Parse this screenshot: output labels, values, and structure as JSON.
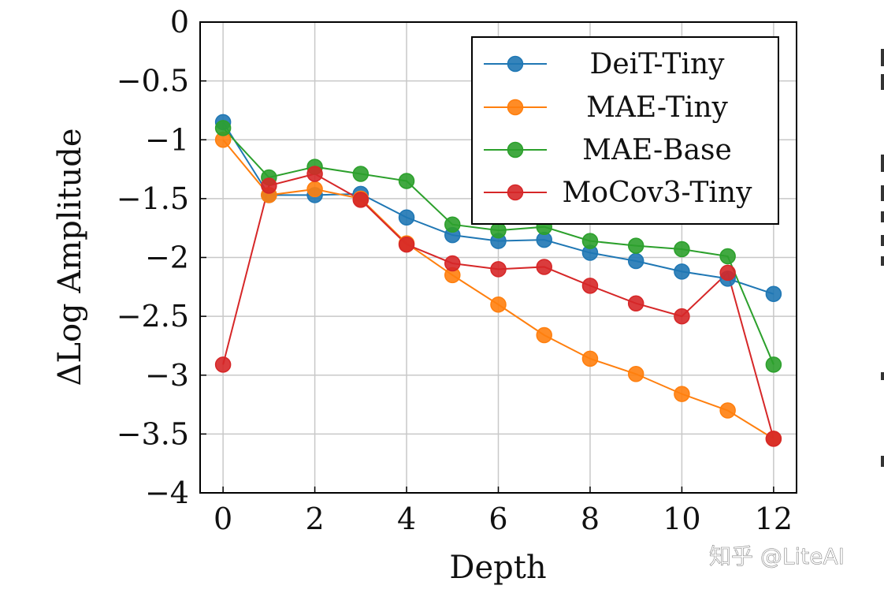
{
  "chart_data": {
    "type": "line",
    "title": "",
    "xlabel": "Depth",
    "ylabel": "ΔLog Amplitude",
    "xlim": [
      -0.5,
      12.5
    ],
    "ylim": [
      -4,
      0
    ],
    "xticks": [
      0,
      2,
      4,
      6,
      8,
      10,
      12
    ],
    "xtick_labels": [
      "0",
      "2",
      "4",
      "6",
      "8",
      "10",
      "12"
    ],
    "yticks": [
      0,
      -0.5,
      -1,
      -1.5,
      -2,
      -2.5,
      -3,
      -3.5,
      -4
    ],
    "ytick_labels": [
      "0",
      "−0.5",
      "−1",
      "−1.5",
      "−2",
      "−2.5",
      "−3",
      "−3.5",
      "−4"
    ],
    "grid": true,
    "legend_position": "top-right",
    "x": [
      0,
      1,
      2,
      3,
      4,
      5,
      6,
      7,
      8,
      9,
      10,
      11,
      12
    ],
    "series": [
      {
        "name": "DeiT-Tiny",
        "color": "#1f77b4",
        "values": [
          -0.85,
          -1.47,
          -1.47,
          -1.46,
          -1.66,
          -1.81,
          -1.86,
          -1.85,
          -1.96,
          -2.03,
          -2.12,
          -2.18,
          -2.31
        ]
      },
      {
        "name": "MAE-Tiny",
        "color": "#ff7f0e",
        "values": [
          -1.0,
          -1.47,
          -1.42,
          -1.5,
          -1.88,
          -2.15,
          -2.4,
          -2.66,
          -2.86,
          -2.99,
          -3.16,
          -3.3,
          -3.54
        ]
      },
      {
        "name": "MAE-Base",
        "color": "#2ca02c",
        "values": [
          -0.9,
          -1.32,
          -1.23,
          -1.29,
          -1.35,
          -1.72,
          -1.77,
          -1.74,
          -1.86,
          -1.9,
          -1.93,
          -1.99,
          -2.91
        ]
      },
      {
        "name": "MoCov3-Tiny",
        "color": "#d62728",
        "values": [
          -2.91,
          -1.39,
          -1.29,
          -1.51,
          -1.89,
          -2.05,
          -2.1,
          -2.08,
          -2.24,
          -2.39,
          -2.5,
          -2.13,
          -3.54
        ]
      }
    ]
  },
  "watermark": {
    "text": "知乎 @LiteAI"
  }
}
